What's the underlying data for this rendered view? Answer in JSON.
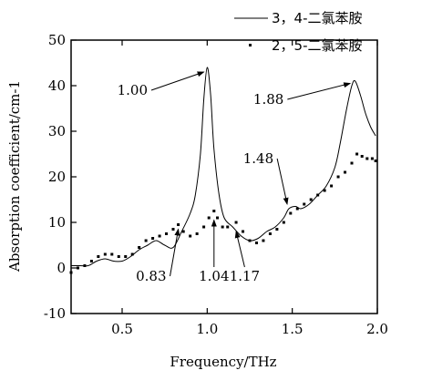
{
  "chart_data": {
    "type": "line",
    "xlabel": "Frequency/THz",
    "ylabel": "Absorption coefficient/cm-1",
    "xlim": [
      0.2,
      2.0
    ],
    "ylim": [
      -10,
      50
    ],
    "xticks": [
      "0.5",
      "1.0",
      "1.5",
      "2.0"
    ],
    "xtick_values": [
      0.5,
      1.0,
      1.5,
      2.0
    ],
    "yticks": [
      "-10",
      "0",
      "10",
      "20",
      "30",
      "40",
      "50"
    ],
    "ytick_values": [
      -10,
      0,
      10,
      20,
      30,
      40,
      50
    ],
    "legend_position": "top-right",
    "series": [
      {
        "name": "3，4-二氯苯胺",
        "style": "line",
        "color": "#000000",
        "x": [
          0.2,
          0.25,
          0.3,
          0.35,
          0.4,
          0.45,
          0.5,
          0.55,
          0.6,
          0.65,
          0.7,
          0.75,
          0.8,
          0.85,
          0.9,
          0.93,
          0.96,
          0.98,
          1.0,
          1.02,
          1.04,
          1.07,
          1.1,
          1.15,
          1.2,
          1.25,
          1.3,
          1.35,
          1.4,
          1.45,
          1.48,
          1.52,
          1.55,
          1.6,
          1.65,
          1.7,
          1.75,
          1.78,
          1.82,
          1.85,
          1.87,
          1.9,
          1.93,
          1.96,
          1.99
        ],
        "y": [
          0.5,
          0.5,
          0.5,
          1.5,
          2.0,
          1.5,
          1.5,
          2.5,
          4.0,
          5.0,
          6.0,
          5.0,
          4.5,
          8.0,
          12.0,
          16.0,
          25.0,
          37.0,
          44.0,
          38.0,
          26.0,
          16.0,
          11.0,
          9.0,
          7.0,
          6.0,
          6.5,
          8.0,
          9.0,
          11.0,
          13.0,
          13.5,
          13.0,
          14.0,
          16.0,
          18.0,
          22.0,
          27.0,
          35.0,
          40.0,
          41.0,
          38.0,
          34.0,
          31.0,
          29.0
        ]
      },
      {
        "name": "2，5-二氯苯胺",
        "style": "dots",
        "color": "#000000",
        "x": [
          0.2,
          0.24,
          0.28,
          0.32,
          0.36,
          0.4,
          0.44,
          0.48,
          0.52,
          0.56,
          0.6,
          0.64,
          0.68,
          0.72,
          0.76,
          0.8,
          0.83,
          0.86,
          0.9,
          0.94,
          0.98,
          1.01,
          1.04,
          1.06,
          1.09,
          1.12,
          1.17,
          1.21,
          1.25,
          1.29,
          1.33,
          1.37,
          1.41,
          1.45,
          1.49,
          1.53,
          1.57,
          1.61,
          1.65,
          1.69,
          1.73,
          1.77,
          1.81,
          1.85,
          1.88,
          1.91,
          1.94,
          1.97,
          1.99
        ],
        "y": [
          -1.0,
          0.0,
          0.5,
          1.5,
          2.5,
          3.0,
          3.0,
          2.5,
          2.5,
          3.0,
          4.5,
          6.0,
          6.5,
          7.0,
          7.5,
          8.5,
          9.5,
          8.0,
          7.0,
          7.5,
          9.0,
          11.0,
          12.5,
          11.0,
          9.0,
          9.0,
          10.0,
          8.0,
          6.0,
          5.5,
          6.0,
          7.5,
          8.5,
          10.0,
          12.0,
          13.0,
          14.0,
          15.0,
          16.0,
          17.0,
          18.0,
          20.0,
          21.0,
          23.0,
          25.0,
          24.5,
          24.0,
          24.0,
          23.5
        ]
      }
    ],
    "annotations": [
      {
        "label": "1.00",
        "text_x": 0.65,
        "text_y": 38,
        "arrow_x": 0.98,
        "arrow_y": 43,
        "label_pos": "left"
      },
      {
        "label": "1.88",
        "text_x": 1.45,
        "text_y": 36,
        "arrow_x": 1.84,
        "arrow_y": 40.5,
        "label_pos": "left"
      },
      {
        "label": "1.48",
        "text_x": 1.39,
        "text_y": 23,
        "arrow_x": 1.47,
        "arrow_y": 14,
        "label_pos": "left"
      },
      {
        "label": "0.83",
        "text_x": 0.76,
        "text_y": -2.8,
        "arrow_x": 0.83,
        "arrow_y": 8.5,
        "label_pos": "left"
      },
      {
        "label": "1.04",
        "text_x": 1.04,
        "text_y": -2.8,
        "arrow_x": 1.04,
        "arrow_y": 10.5,
        "label_pos": "center"
      },
      {
        "label": "1.17",
        "text_x": 1.22,
        "text_y": -2.8,
        "arrow_x": 1.17,
        "arrow_y": 8.0,
        "label_pos": "center"
      }
    ]
  }
}
